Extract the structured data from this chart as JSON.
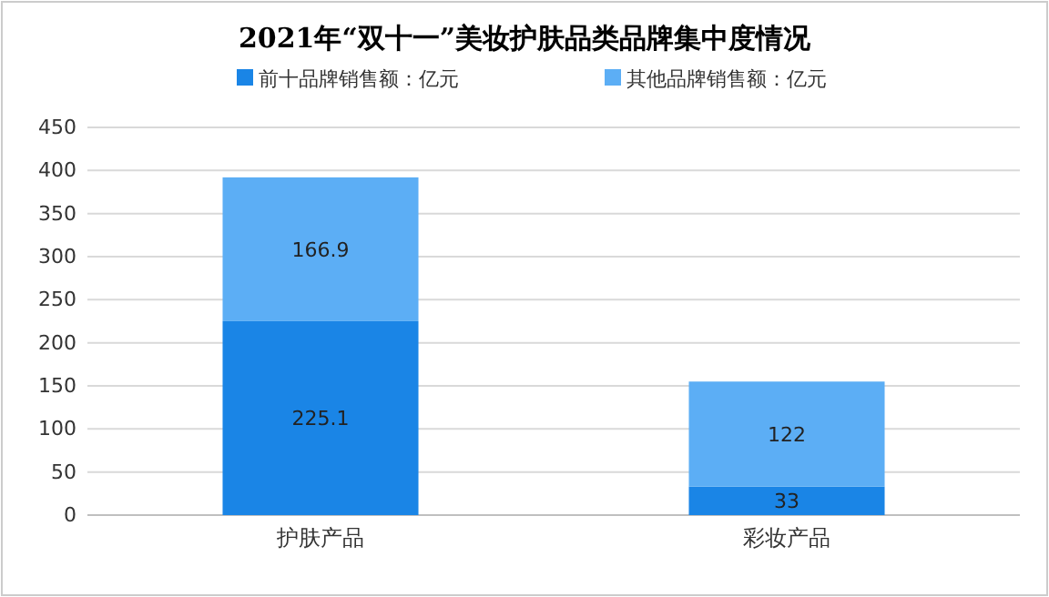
{
  "chart_data": {
    "type": "bar",
    "title": "2021年“双十一”美妆护肤品类品牌集中度情况",
    "categories": [
      "护肤产品",
      "彩妆产品"
    ],
    "stacked": true,
    "series": [
      {
        "name": "前十品牌销售额：亿元",
        "color": "#1a85e6",
        "values": [
          225.1,
          33
        ]
      },
      {
        "name": "其他品牌销售额：亿元",
        "color": "#5caef5",
        "values": [
          166.9,
          122
        ]
      }
    ],
    "ylim": [
      0,
      450
    ],
    "yticks": [
      0,
      50,
      100,
      150,
      200,
      250,
      300,
      350,
      400,
      450
    ],
    "grid": "y",
    "legend": "top",
    "data_labels": true
  }
}
